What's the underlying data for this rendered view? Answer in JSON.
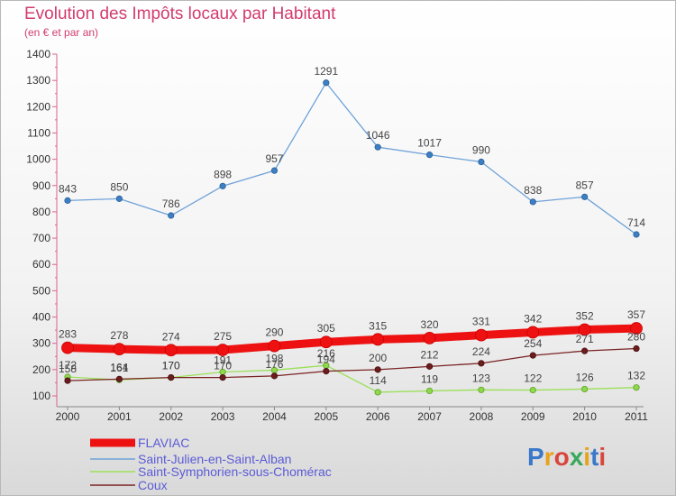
{
  "title": "Evolution des Impôts locaux par Habitant",
  "subtitle": "(en € et par an)",
  "brand": "Proxiti",
  "chart_data": {
    "type": "line",
    "title": "Evolution des Impôts locaux par Habitant",
    "subtitle": "(en € et par an)",
    "xlabel": "",
    "ylabel": "",
    "x": [
      2000,
      2001,
      2002,
      2003,
      2004,
      2005,
      2006,
      2007,
      2008,
      2009,
      2010,
      2011
    ],
    "ylim": [
      100,
      1400
    ],
    "yticks": [
      100,
      200,
      300,
      400,
      500,
      600,
      700,
      800,
      900,
      1000,
      1100,
      1200,
      1300,
      1400
    ],
    "grid": false,
    "legend_position": "bottom-left",
    "series": [
      {
        "name": "FLAVIAC",
        "color": "#ee1111",
        "values": [
          283,
          278,
          274,
          275,
          290,
          305,
          315,
          320,
          331,
          342,
          352,
          357
        ]
      },
      {
        "name": "Saint-Julien-en-Saint-Alban",
        "color": "#6fa2d8",
        "values": [
          843,
          850,
          786,
          898,
          957,
          1291,
          1046,
          1017,
          990,
          838,
          857,
          714
        ]
      },
      {
        "name": "Saint-Symphorien-sous-Chomérac",
        "color": "#9be05a",
        "values": [
          172,
          161,
          170,
          191,
          198,
          216,
          114,
          119,
          123,
          122,
          126,
          132
        ]
      },
      {
        "name": "Coux",
        "color": "#7a2323",
        "values": [
          158,
          164,
          170,
          170,
          176,
          194,
          200,
          212,
          224,
          254,
          271,
          280
        ]
      }
    ]
  }
}
